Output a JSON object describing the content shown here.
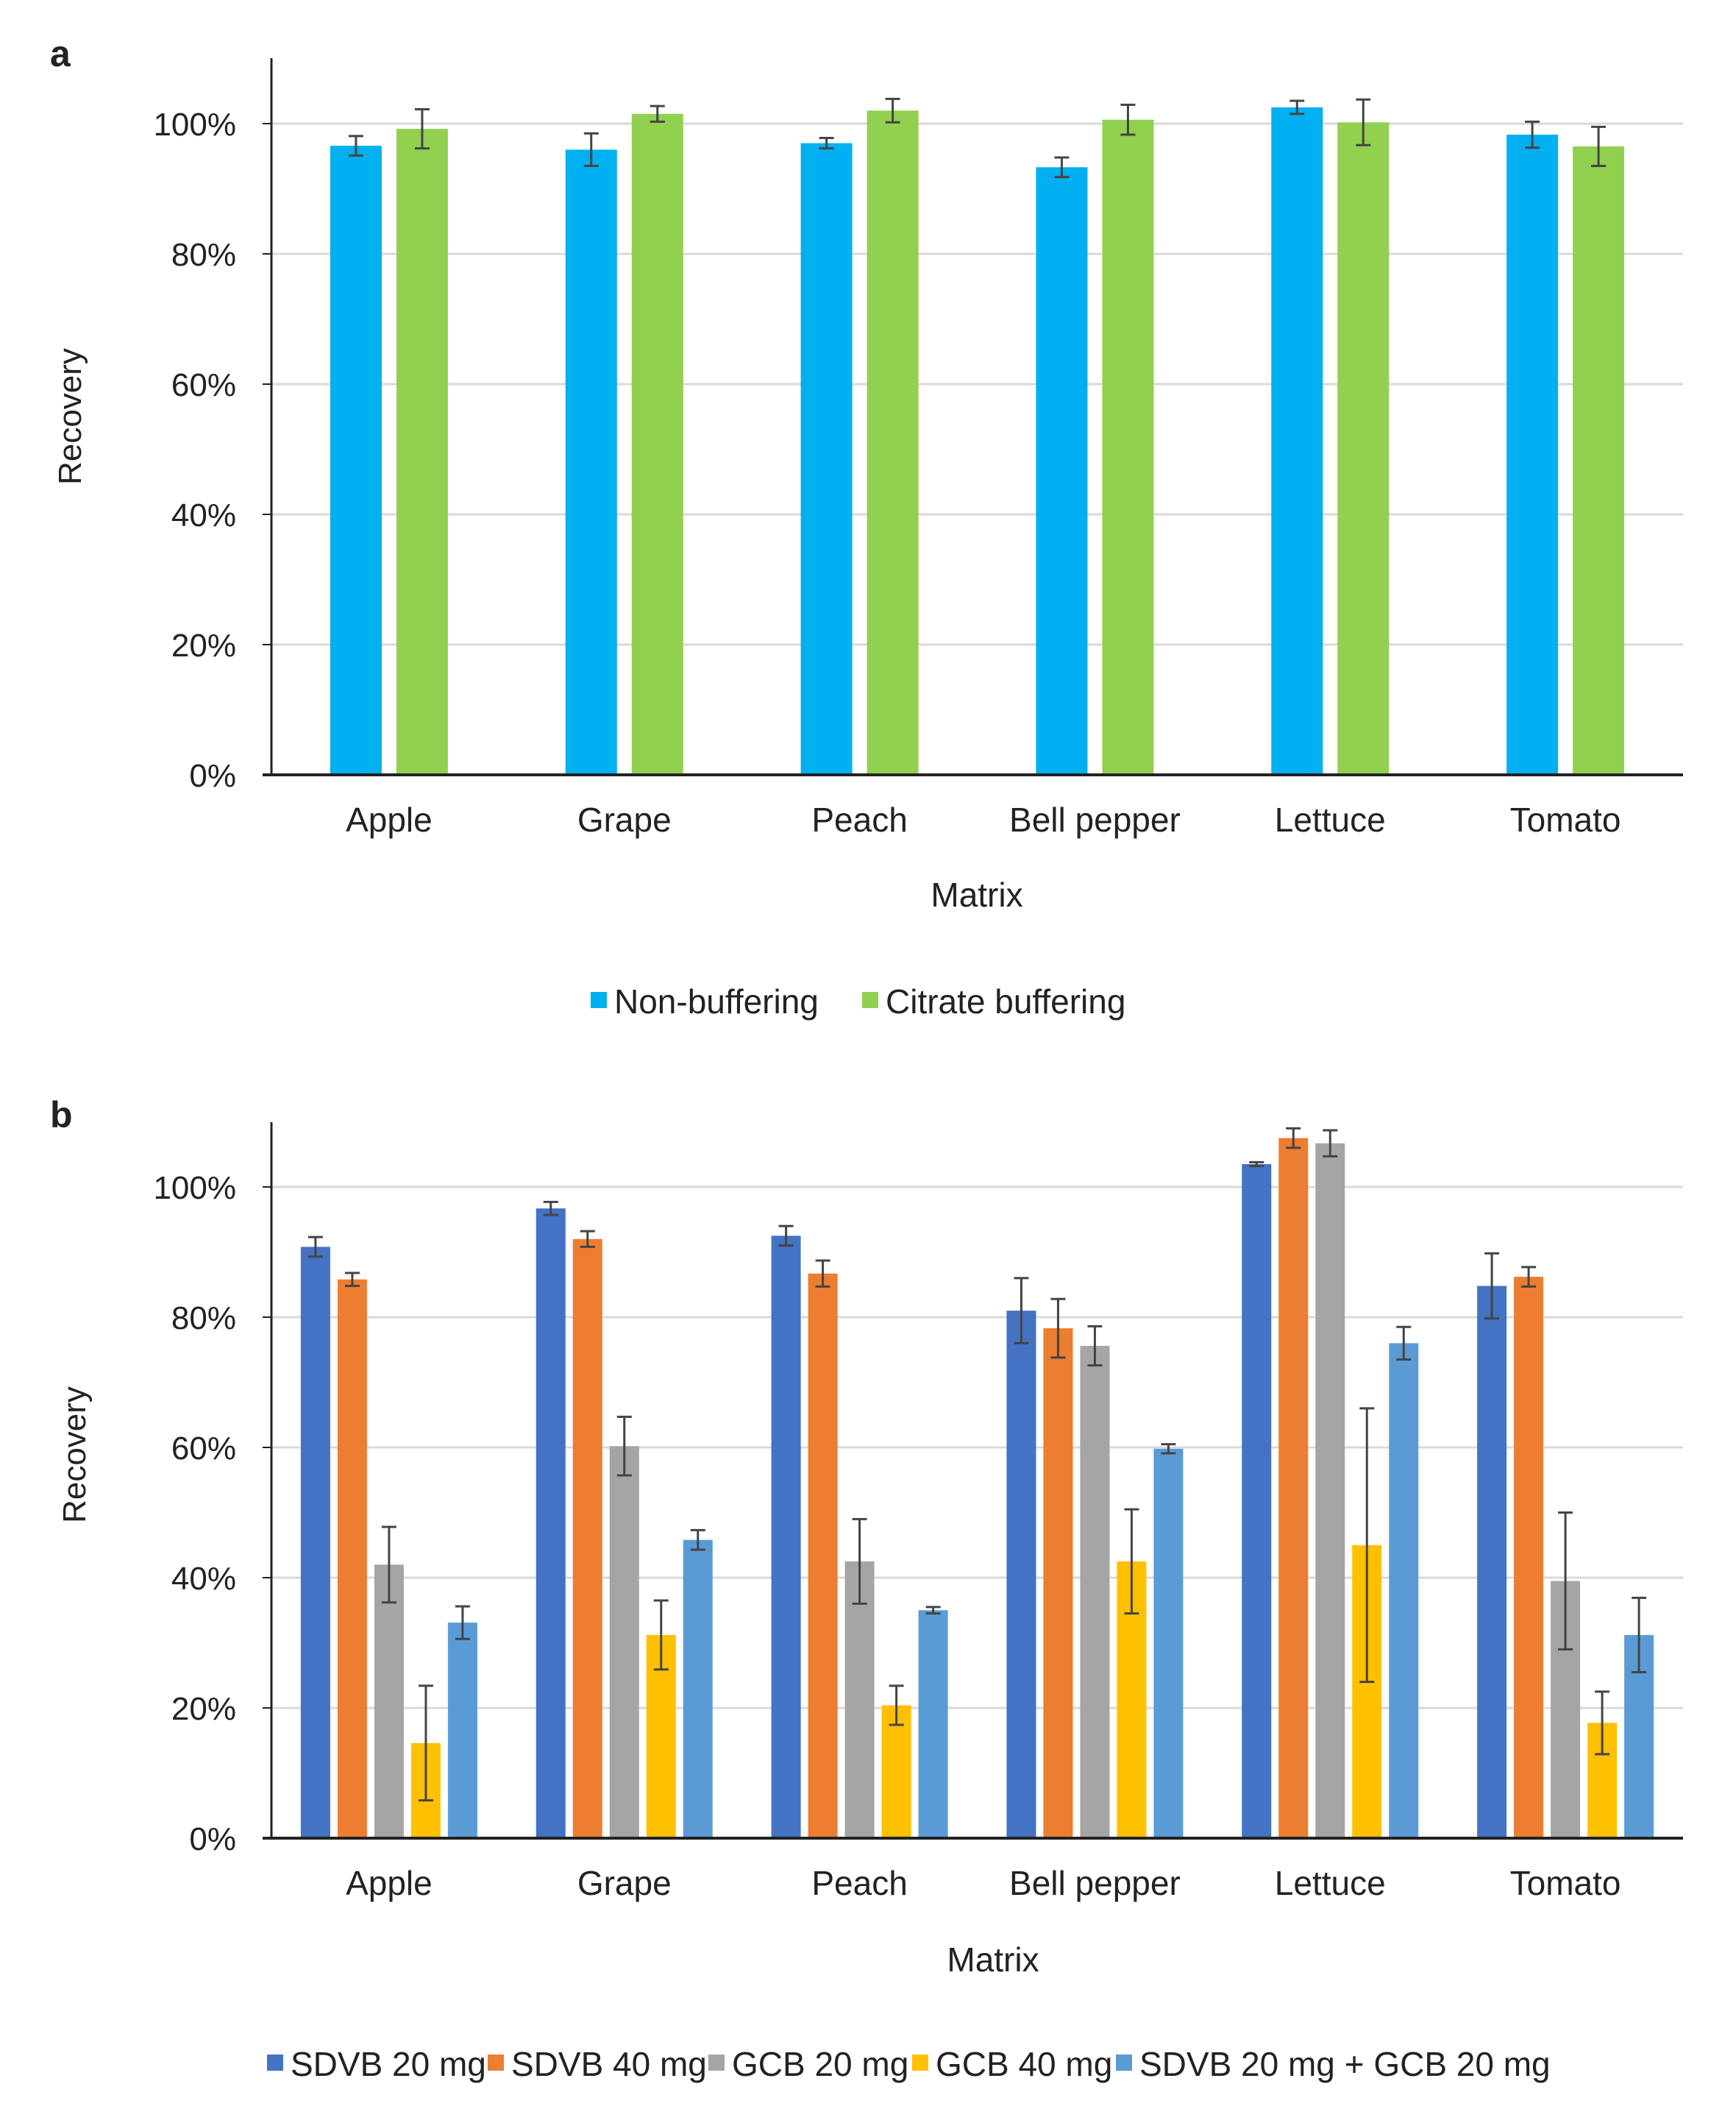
{
  "chart_data": [
    {
      "panel": "a",
      "type": "bar",
      "title": "",
      "xlabel": "Matrix",
      "ylabel": "Recovery",
      "ylim": [
        0,
        110
      ],
      "yticks": [
        "0%",
        "20%",
        "40%",
        "60%",
        "80%",
        "100%"
      ],
      "ytick_values": [
        0,
        20,
        40,
        60,
        80,
        100
      ],
      "grid": true,
      "legend_position": "bottom",
      "categories": [
        "Apple",
        "Grape",
        "Peach",
        "Bell pepper",
        "Lettuce",
        "Tomato"
      ],
      "series": [
        {
          "name": "Non-buffering",
          "color": "#00B0F0",
          "values": [
            96.6,
            96.0,
            97.0,
            93.3,
            102.5,
            98.3
          ],
          "errors": [
            1.5,
            2.5,
            0.8,
            1.5,
            1.0,
            2.0
          ]
        },
        {
          "name": "Citrate buffering",
          "color": "#92D050",
          "values": [
            99.2,
            101.5,
            102.0,
            100.6,
            100.2,
            96.5
          ],
          "errors": [
            3.0,
            1.2,
            1.8,
            2.3,
            3.5,
            3.0
          ]
        }
      ]
    },
    {
      "panel": "b",
      "type": "bar",
      "title": "",
      "xlabel": "Matrix",
      "ylabel": "Recovery",
      "ylim": [
        0,
        110
      ],
      "yticks": [
        "0%",
        "20%",
        "40%",
        "60%",
        "80%",
        "100%"
      ],
      "ytick_values": [
        0,
        20,
        40,
        60,
        80,
        100
      ],
      "grid": true,
      "legend_position": "bottom",
      "categories": [
        "Apple",
        "Grape",
        "Peach",
        "Bell pepper",
        "Lettuce",
        "Tomato"
      ],
      "series": [
        {
          "name": "SDVB 20 mg",
          "color": "#4472C4",
          "values": [
            90.8,
            96.7,
            92.5,
            81.0,
            103.5,
            84.8
          ],
          "errors": [
            1.5,
            1.0,
            1.5,
            5.0,
            0.3,
            5.0
          ]
        },
        {
          "name": "SDVB 40 mg",
          "color": "#ED7D31",
          "values": [
            85.8,
            92.0,
            86.7,
            78.3,
            107.5,
            86.2
          ],
          "errors": [
            1.0,
            1.2,
            2.0,
            4.5,
            1.5,
            1.5
          ]
        },
        {
          "name": "GCB 20 mg",
          "color": "#A5A5A5",
          "values": [
            42.0,
            60.2,
            42.5,
            75.6,
            106.7,
            39.5
          ],
          "errors": [
            5.8,
            4.5,
            6.5,
            3.0,
            2.0,
            10.5
          ]
        },
        {
          "name": "GCB 40 mg",
          "color": "#FFC000",
          "values": [
            14.6,
            31.2,
            20.4,
            42.5,
            45.0,
            17.7
          ],
          "errors": [
            8.8,
            5.3,
            3.0,
            8.0,
            21.0,
            4.8
          ]
        },
        {
          "name": "SDVB 20 mg + GCB 20 mg",
          "color": "#5B9BD5",
          "values": [
            33.1,
            45.8,
            35.0,
            59.8,
            76.0,
            31.2
          ],
          "errors": [
            2.5,
            1.5,
            0.5,
            0.7,
            2.5,
            5.7
          ]
        }
      ]
    }
  ]
}
